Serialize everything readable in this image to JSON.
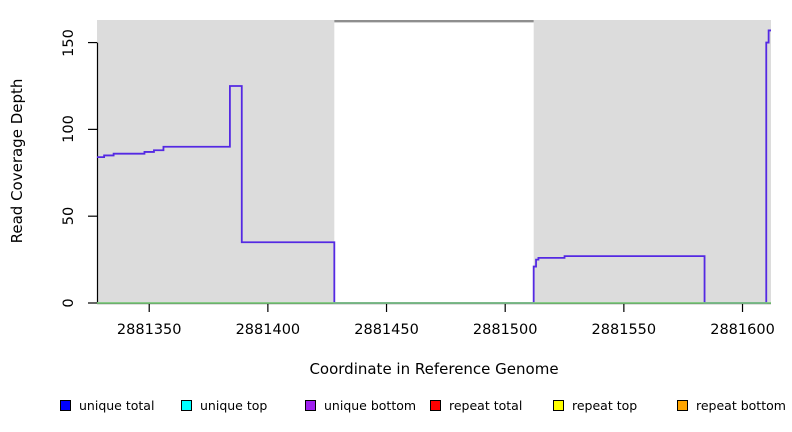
{
  "chart_data": {
    "type": "line",
    "title": "",
    "x_axis": {
      "label": "Coordinate in Reference Genome",
      "min": 2881328,
      "max": 2881612,
      "ticks": [
        2881350,
        2881400,
        2881450,
        2881500,
        2881550,
        2881600
      ]
    },
    "y_axis": {
      "label": "Read Coverage Depth",
      "min": 0,
      "max": 163,
      "ticks": [
        0,
        50,
        100,
        150
      ]
    },
    "plot_background": "#dcdcdc",
    "masked_region": {
      "x_start": 2881428,
      "x_end": 2881512,
      "fill": "#ffffff",
      "top_border_color": "#8e8e8e"
    },
    "series": [
      {
        "name": "unique coverage",
        "color": "#5429e3",
        "style": "step",
        "points": [
          [
            2881328,
            84
          ],
          [
            2881331,
            85
          ],
          [
            2881335,
            86
          ],
          [
            2881348,
            87
          ],
          [
            2881352,
            88
          ],
          [
            2881356,
            90
          ],
          [
            2881384,
            125
          ],
          [
            2881389,
            35
          ],
          [
            2881428,
            0
          ],
          [
            2881512,
            21
          ],
          [
            2881513,
            25
          ],
          [
            2881514,
            26
          ],
          [
            2881525,
            27
          ],
          [
            2881584,
            0
          ],
          [
            2881610,
            150
          ],
          [
            2881611,
            157
          ],
          [
            2881612,
            157
          ]
        ]
      },
      {
        "name": "zero baseline",
        "color": "#7cc87c",
        "style": "line",
        "points": [
          [
            2881328,
            0
          ],
          [
            2881612,
            0
          ]
        ]
      }
    ],
    "legend": [
      {
        "label": "unique total",
        "color": "#0000ff"
      },
      {
        "label": "unique top",
        "color": "#00ffff"
      },
      {
        "label": "unique bottom",
        "color": "#a020f0"
      },
      {
        "label": "repeat total",
        "color": "#ff0000"
      },
      {
        "label": "repeat top",
        "color": "#ffff00"
      },
      {
        "label": "repeat bottom",
        "color": "#ffa500"
      }
    ],
    "axis_color": "#000000",
    "legend_position": "bottom"
  }
}
